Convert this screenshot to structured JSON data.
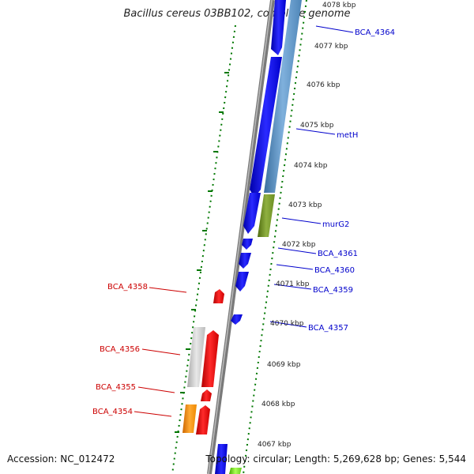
{
  "title": "Bacillus cereus 03BB102, complete genome",
  "accession": "Accession: NC_012472",
  "summary": "Topology: circular; Length: 5,269,628 bp; Genes: 5,544",
  "ticks": [
    "4078 kbp",
    "4077 kbp",
    "4076 kbp",
    "4075 kbp",
    "4074 kbp",
    "4073 kbp",
    "4072 kbp",
    "4071 kbp",
    "4070 kbp",
    "4069 kbp",
    "4068 kbp",
    "4067 kbp"
  ],
  "genes_right": [
    "BCA_4364",
    "metH",
    "murG2",
    "BCA_4361",
    "BCA_4360",
    "BCA_4359",
    "BCA_4357"
  ],
  "genes_left": [
    "BCA_4358",
    "BCA_4356",
    "BCA_4355",
    "BCA_4354"
  ],
  "colors": {
    "forward_cds": "#0000ee",
    "reverse_cds": "#ee0000",
    "right_label": "#0000cc",
    "left_label": "#cc0000",
    "backbone": "#888888",
    "tick_dots": "#007700",
    "steel_blue": "#4f86b8",
    "olive": "#6b8e23",
    "grey_feature": "#c8c8c8",
    "orange_feature": "#ee8800"
  }
}
